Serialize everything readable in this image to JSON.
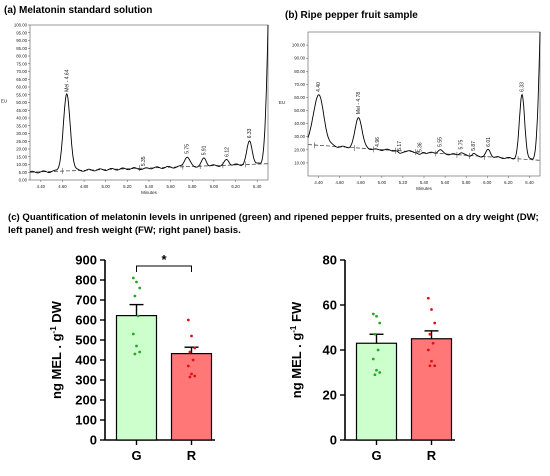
{
  "panel_a": {
    "title": "(a) Melatonin  standard solution"
  },
  "panel_b": {
    "title": "(b) Ripe pepper fruit sample"
  },
  "caption": "(c) Quantification  of melatonin levels in unripened (green) and ripened pepper fruits, presented on a dry weight (DW; left panel) and fresh weight (FW; right panel) basis.",
  "colors": {
    "green_fill": "#ccffcc",
    "green_dot": "#22aa22",
    "red_fill": "#ff7777",
    "red_dot": "#dd1111",
    "trace": "#000000"
  },
  "chart_data": [
    {
      "type": "line",
      "title": "(a) Melatonin  standard solution",
      "xlabel": "Minutes",
      "ylabel": "EU",
      "xlim": [
        4.3,
        6.5
      ],
      "ylim": [
        0,
        100
      ],
      "xticks": [
        "4.40",
        "4.60",
        "4.80",
        "5.00",
        "5.20",
        "5.40",
        "5.60",
        "5.80",
        "6.00",
        "6.20",
        "6.40"
      ],
      "yticks": [
        "0.00",
        "5.00",
        "10.00",
        "15.00",
        "20.00",
        "25.00",
        "30.00",
        "35.00",
        "40.00",
        "45.00",
        "50.00",
        "55.00",
        "60.00",
        "65.00",
        "70.00",
        "75.00",
        "80.00",
        "85.00",
        "90.00",
        "95.00",
        "100.00"
      ],
      "baseline": {
        "x": [
          4.3,
          6.5
        ],
        "y": [
          5,
          10.5
        ]
      },
      "peaks": [
        {
          "label": "Mel - 4.64",
          "x": 4.64,
          "y": 55,
          "width": 0.045
        },
        {
          "label": "5.35",
          "x": 5.35,
          "y": 7,
          "width": 0.03
        },
        {
          "label": "5.75",
          "x": 5.75,
          "y": 15,
          "width": 0.035
        },
        {
          "label": "5.91",
          "x": 5.91,
          "y": 14,
          "width": 0.03
        },
        {
          "label": "6.12",
          "x": 6.12,
          "y": 13,
          "width": 0.03
        },
        {
          "label": "6.33",
          "x": 6.33,
          "y": 25,
          "width": 0.035
        }
      ]
    },
    {
      "type": "line",
      "title": "(b) Ripe pepper fruit sample",
      "xlabel": "Minutes",
      "ylabel": "EU",
      "xlim": [
        4.3,
        6.5
      ],
      "ylim": [
        0,
        110
      ],
      "xticks": [
        "4.40",
        "4.60",
        "4.80",
        "5.00",
        "5.20",
        "5.40",
        "5.60",
        "5.80",
        "6.00",
        "6.20",
        "6.40"
      ],
      "yticks": [
        "10.00",
        "20.00",
        "30.00",
        "40.00",
        "50.00",
        "60.00",
        "70.00",
        "80.00",
        "90.00",
        "100.00"
      ],
      "baseline": {
        "x": [
          4.3,
          6.5
        ],
        "y": [
          24,
          12
        ]
      },
      "peaks": [
        {
          "label": "4.40",
          "x": 4.4,
          "y": 62,
          "width": 0.07
        },
        {
          "label": "Mel - 4.78",
          "x": 4.78,
          "y": 45,
          "width": 0.045
        },
        {
          "label": "4.96",
          "x": 4.96,
          "y": 20,
          "width": 0.03
        },
        {
          "label": "5.17",
          "x": 5.17,
          "y": 17,
          "width": 0.025
        },
        {
          "label": "5.36",
          "x": 5.36,
          "y": 16,
          "width": 0.025
        },
        {
          "label": "5.55",
          "x": 5.55,
          "y": 20,
          "width": 0.03
        },
        {
          "label": "5.75",
          "x": 5.75,
          "y": 18,
          "width": 0.025
        },
        {
          "label": "5.87",
          "x": 5.87,
          "y": 17,
          "width": 0.02
        },
        {
          "label": "6.01",
          "x": 6.01,
          "y": 20,
          "width": 0.03
        },
        {
          "label": "6.33",
          "x": 6.33,
          "y": 62,
          "width": 0.035
        }
      ]
    },
    {
      "type": "bar",
      "categories": [
        "G",
        "R"
      ],
      "values": [
        622,
        432
      ],
      "errors": [
        55,
        32
      ],
      "ylabel": "ng MEL . g-1 DW",
      "ylim": [
        0,
        900
      ],
      "yticks": [
        0,
        100,
        200,
        300,
        400,
        500,
        600,
        700,
        800,
        900
      ],
      "significance": "*",
      "points": [
        [
          810,
          790,
          760,
          720,
          620,
          530,
          470,
          440,
          430
        ],
        [
          600,
          520,
          460,
          440,
          400,
          370,
          330,
          320,
          315
        ]
      ]
    },
    {
      "type": "bar",
      "categories": [
        "G",
        "R"
      ],
      "values": [
        43,
        45
      ],
      "errors": [
        4,
        3.5
      ],
      "ylabel": "ng MEL . g-1 FW",
      "ylim": [
        0,
        80
      ],
      "yticks": [
        0,
        20,
        40,
        60,
        80
      ],
      "points": [
        [
          56,
          55,
          52,
          47,
          40,
          36,
          31,
          30,
          29
        ],
        [
          63,
          58,
          52,
          47,
          43,
          40,
          35,
          33,
          33
        ]
      ]
    }
  ]
}
